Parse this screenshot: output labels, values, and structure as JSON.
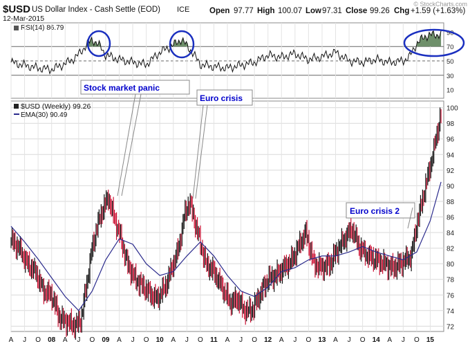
{
  "header": {
    "symbol": "$USD",
    "name": "US Dollar Index - Cash Settle (EOD)",
    "exchange": "ICE",
    "date": "12-Mar-2015",
    "ohlc": {
      "open_label": "Open",
      "open": "97.77",
      "high_label": "High",
      "high": "100.07",
      "low_label": "Low",
      "low": "97.31",
      "close_label": "Close",
      "close": "99.26",
      "chg_label": "Chg",
      "chg": "+1.59 (+1.63%)"
    },
    "watermark": "© StockCharts.com"
  },
  "rsi_panel": {
    "label": "RSI(14) 86.79",
    "ticks": [
      "90",
      "70",
      "50",
      "30",
      "10"
    ]
  },
  "price_panel": {
    "legend_price": "$USD (Weekly) 99.26",
    "legend_ema": "EMA(30) 90.49"
  },
  "annotations": [
    {
      "text": "Stock market panic"
    },
    {
      "text": "Euro crisis"
    },
    {
      "text": "Euro crisis 2"
    }
  ],
  "x_axis_labels": [
    "A",
    "J",
    "O",
    "08",
    "A",
    "J",
    "O",
    "09",
    "A",
    "J",
    "O",
    "10",
    "A",
    "J",
    "O",
    "11",
    "A",
    "J",
    "O",
    "12",
    "A",
    "J",
    "O",
    "13",
    "A",
    "J",
    "O",
    "14",
    "A",
    "J",
    "O",
    "15"
  ],
  "colors": {
    "up_bar": "#111111",
    "down_bar": "#cc1133",
    "ema": "#2a2a8c",
    "annotation_text": "#0000cc",
    "circle": "#1a2fbf",
    "rsi_fill": "#6e8f6a"
  },
  "chart_data": [
    {
      "type": "line",
      "title": "RSI(14)",
      "series_name": "RSI(14)",
      "ylim": [
        0,
        100
      ],
      "ticks": [
        10,
        30,
        50,
        70,
        90
      ],
      "reference_lines": [
        30,
        50,
        70
      ],
      "last_value": 86.79,
      "x": [
        2007.25,
        2007.5,
        2007.75,
        2008.0,
        2008.25,
        2008.45,
        2008.6,
        2008.75,
        2008.9,
        2009.0,
        2009.25,
        2009.5,
        2009.75,
        2010.0,
        2010.25,
        2010.4,
        2010.6,
        2010.75,
        2011.0,
        2011.25,
        2011.5,
        2011.75,
        2012.0,
        2012.25,
        2012.5,
        2012.75,
        2013.0,
        2013.25,
        2013.5,
        2013.75,
        2014.0,
        2014.25,
        2014.5,
        2014.62,
        2014.75,
        2014.9,
        2015.0,
        2015.2
      ],
      "values": [
        48,
        44,
        40,
        38,
        46,
        55,
        68,
        80,
        70,
        58,
        52,
        48,
        45,
        62,
        72,
        80,
        62,
        45,
        42,
        40,
        44,
        48,
        58,
        55,
        60,
        52,
        56,
        62,
        50,
        48,
        52,
        48,
        50,
        56,
        74,
        84,
        86,
        86.79
      ]
    },
    {
      "type": "candlestick",
      "title": "US Dollar Index - Cash Settle (EOD)",
      "series": [
        {
          "name": "$USD (Weekly)",
          "last_value": 99.26
        },
        {
          "name": "EMA(30)",
          "last_value": 90.49
        }
      ],
      "ylim": [
        71.5,
        100.5
      ],
      "yticks": [
        72,
        74,
        76,
        78,
        80,
        82,
        84,
        86,
        88,
        90,
        92,
        94,
        96,
        98,
        100
      ],
      "xlim": [
        2007.25,
        2015.25
      ],
      "price_x": [
        2007.25,
        2007.4,
        2007.55,
        2007.7,
        2007.85,
        2008.0,
        2008.15,
        2008.3,
        2008.45,
        2008.55,
        2008.65,
        2008.75,
        2008.85,
        2008.95,
        2009.05,
        2009.15,
        2009.25,
        2009.4,
        2009.55,
        2009.7,
        2009.85,
        2009.95,
        2010.1,
        2010.25,
        2010.35,
        2010.45,
        2010.55,
        2010.7,
        2010.85,
        2011.0,
        2011.15,
        2011.3,
        2011.45,
        2011.55,
        2011.7,
        2011.85,
        2012.0,
        2012.15,
        2012.3,
        2012.45,
        2012.55,
        2012.7,
        2012.85,
        2013.0,
        2013.15,
        2013.3,
        2013.45,
        2013.55,
        2013.7,
        2013.85,
        2014.0,
        2014.15,
        2014.3,
        2014.45,
        2014.55,
        2014.65,
        2014.75,
        2014.85,
        2014.95,
        2015.05,
        2015.12,
        2015.2
      ],
      "price_close": [
        83,
        82,
        80,
        79,
        76.5,
        76,
        73,
        72.5,
        72,
        73,
        77.5,
        82,
        85,
        87,
        88.5,
        86,
        84,
        80,
        78,
        77,
        76,
        75.5,
        77,
        80,
        82,
        86,
        88,
        84,
        80,
        79,
        77,
        75,
        75.5,
        74,
        74,
        76,
        78,
        78.5,
        79.5,
        80.5,
        82,
        84,
        80,
        79.5,
        80,
        82,
        83.5,
        84.5,
        82,
        81,
        80.5,
        80,
        79.5,
        80,
        80.5,
        81,
        85,
        88,
        91,
        94,
        96.5,
        99.26
      ],
      "ema_x": [
        2007.25,
        2007.5,
        2007.75,
        2008.0,
        2008.25,
        2008.5,
        2008.75,
        2009.0,
        2009.25,
        2009.5,
        2009.75,
        2010.0,
        2010.25,
        2010.5,
        2010.75,
        2011.0,
        2011.25,
        2011.5,
        2011.75,
        2012.0,
        2012.25,
        2012.5,
        2012.75,
        2013.0,
        2013.25,
        2013.5,
        2013.75,
        2014.0,
        2014.25,
        2014.5,
        2014.75,
        2015.0,
        2015.2
      ],
      "ema_values": [
        84.8,
        82.8,
        80.6,
        78.2,
        75.8,
        74,
        76.5,
        80.5,
        83.2,
        82.5,
        80,
        78.5,
        79,
        81,
        82.8,
        81,
        78.5,
        76.5,
        75.8,
        77,
        79,
        79.5,
        80.5,
        81,
        81,
        81.5,
        82.2,
        81.5,
        81,
        80.5,
        81.5,
        85.5,
        90.49
      ]
    }
  ]
}
